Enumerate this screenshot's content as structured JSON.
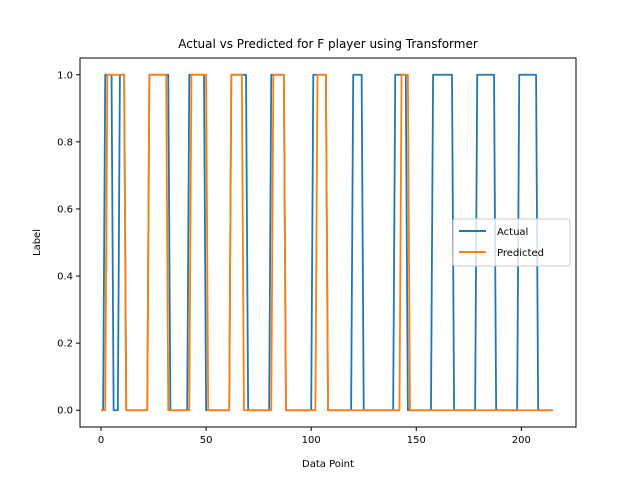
{
  "chart_data": {
    "type": "line",
    "title": "Actual vs Predicted for F player using Transformer",
    "xlabel": "Data Point",
    "ylabel": "Label",
    "xlim": [
      -10,
      226
    ],
    "ylim": [
      -0.05,
      1.05
    ],
    "xticks": [
      0,
      50,
      100,
      150,
      200
    ],
    "yticks": [
      0.0,
      0.2,
      0.4,
      0.6,
      0.8,
      1.0
    ],
    "xtick_labels": [
      "0",
      "50",
      "100",
      "150",
      "200"
    ],
    "ytick_labels": [
      "0.0",
      "0.2",
      "0.4",
      "0.6",
      "0.8",
      "1.0"
    ],
    "grid": false,
    "legend_position": "center-right",
    "series": [
      {
        "name": "Actual",
        "color": "#1f77b4",
        "segments_high": [
          [
            2,
            5
          ],
          [
            9,
            11
          ],
          [
            23,
            32
          ],
          [
            42,
            49
          ],
          [
            62,
            69
          ],
          [
            81,
            87
          ],
          [
            101,
            107
          ],
          [
            120,
            124
          ],
          [
            140,
            145
          ],
          [
            158,
            167
          ],
          [
            179,
            187
          ],
          [
            199,
            207
          ]
        ],
        "x_end": 215
      },
      {
        "name": "Predicted",
        "color": "#ff7f0e",
        "segments_high": [
          [
            3,
            11
          ],
          [
            23,
            31
          ],
          [
            43,
            50
          ],
          [
            62,
            67
          ],
          [
            82,
            87
          ],
          [
            103,
            107
          ],
          [
            143,
            146
          ]
        ],
        "x_end": 215
      }
    ]
  }
}
